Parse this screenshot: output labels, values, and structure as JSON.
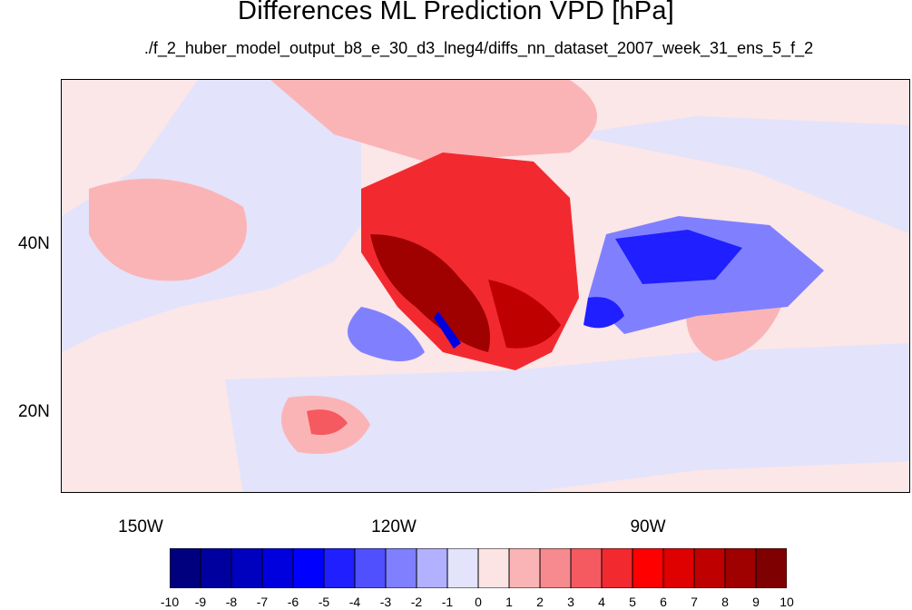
{
  "title": "Differences ML Prediction VPD [hPa]",
  "subtitle": "./f_2_huber_model_output_b8_e_30_d3_lneg4/diffs_nn_dataset_2007_week_31_ens_5_f_2",
  "latitude_labels": [
    "40N",
    "20N"
  ],
  "longitude_labels": [
    "150W",
    "120W",
    "90W"
  ],
  "colorbar": {
    "labels": [
      "-10",
      "-9",
      "-8",
      "-7",
      "-6",
      "-5",
      "-4",
      "-3",
      "-2",
      "-1",
      "0",
      "1",
      "2",
      "3",
      "4",
      "5",
      "6",
      "7",
      "8",
      "9",
      "10"
    ],
    "colors": [
      "#00007f",
      "#00009f",
      "#0000bf",
      "#0000df",
      "#0000ff",
      "#1f1fff",
      "#5050ff",
      "#8080ff",
      "#b1b1ff",
      "#e3e3fb",
      "#fce3e4",
      "#fbb4b6",
      "#f78a8e",
      "#f45a5f",
      "#f22a30",
      "#ff0000",
      "#df0000",
      "#bf0000",
      "#9f0000",
      "#7f0000"
    ]
  },
  "map_colors": {
    "ocean_neutral": "#fbe6e8",
    "light_blue": "#e3e3fb",
    "blue2": "#b1b1ff",
    "blue3": "#8080ff",
    "blue4": "#5050ff",
    "blue5": "#1f1fff",
    "light_red": "#fbb4b6",
    "red2": "#f78a8e",
    "red3": "#f45a5f",
    "red4": "#f22a30",
    "red5": "#df0000",
    "dark_red": "#9f0000"
  }
}
